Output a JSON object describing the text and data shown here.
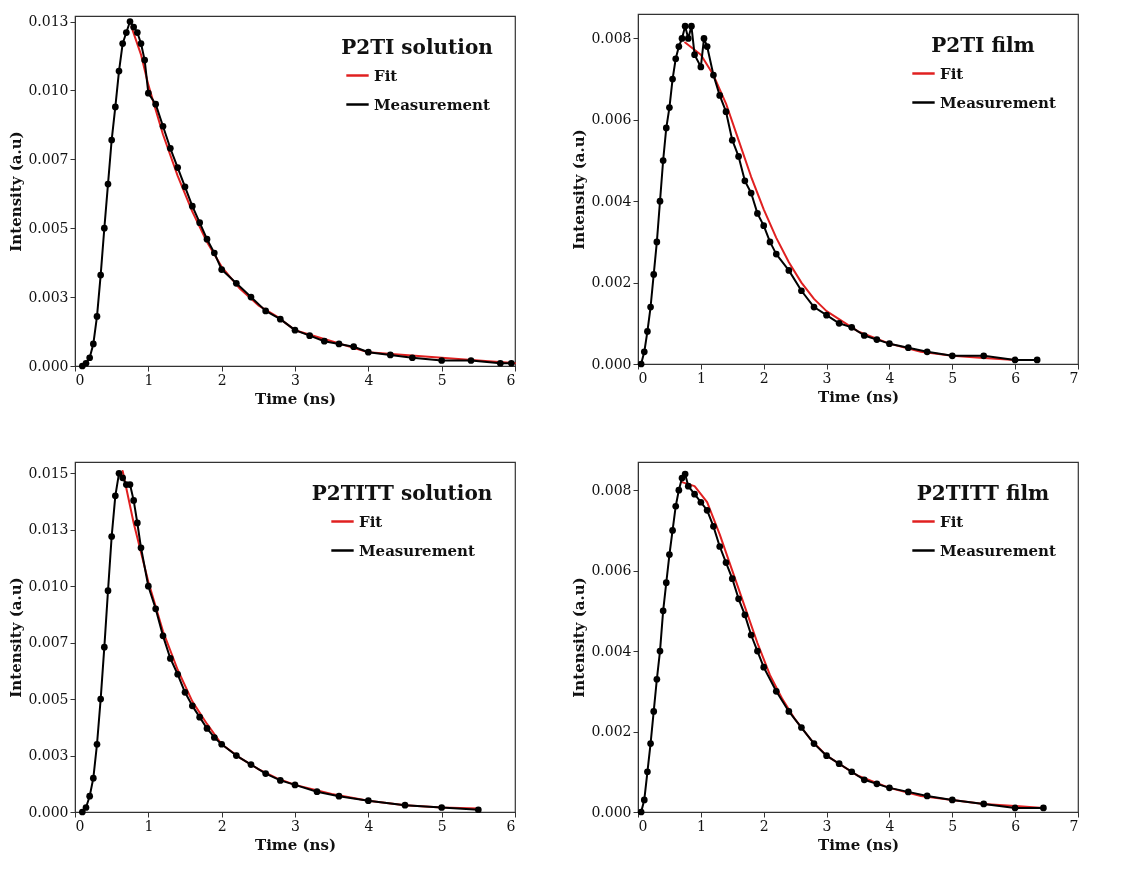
{
  "chart_data": [
    {
      "type": "line",
      "legend_title": "P2TI solution",
      "xlabel": "Time (ns)",
      "ylabel": "Intensity (a.u)",
      "xlim": [
        0,
        6
      ],
      "xticks": [
        0,
        1,
        2,
        3,
        4,
        5,
        6
      ],
      "ylim": [
        0,
        0.0127
      ],
      "yticks": [
        {
          "value": 0,
          "label": "0.000"
        },
        {
          "value": 0.0025,
          "label": "0.003"
        },
        {
          "value": 0.005,
          "label": "0.005"
        },
        {
          "value": 0.0075,
          "label": "0.007"
        },
        {
          "value": 0.01,
          "label": "0.010"
        },
        {
          "value": 0.0125,
          "label": "0.013"
        }
      ],
      "grid": false,
      "legend": "top right",
      "series": [
        {
          "name": "Fit",
          "color": "#e02020",
          "marker": "none",
          "x": [
            0.77,
            0.9,
            1.0,
            1.2,
            1.4,
            1.6,
            1.8,
            2.0,
            2.25,
            2.5,
            2.75,
            3.0,
            3.5,
            4.0,
            4.5,
            5.0,
            5.5,
            6.0
          ],
          "values": [
            0.0123,
            0.0113,
            0.0102,
            0.0084,
            0.0069,
            0.0056,
            0.0045,
            0.0036,
            0.0028,
            0.0022,
            0.0018,
            0.0013,
            0.0009,
            0.0005,
            0.0004,
            0.0003,
            0.0002,
            0.0001
          ]
        },
        {
          "name": "Measurement",
          "color": "#000000",
          "marker": "circle",
          "x": [
            0.1,
            0.15,
            0.2,
            0.25,
            0.3,
            0.35,
            0.4,
            0.45,
            0.5,
            0.55,
            0.6,
            0.65,
            0.7,
            0.75,
            0.8,
            0.85,
            0.9,
            0.95,
            1.0,
            1.1,
            1.2,
            1.3,
            1.4,
            1.5,
            1.6,
            1.7,
            1.8,
            1.9,
            2.0,
            2.2,
            2.4,
            2.6,
            2.8,
            3.0,
            3.2,
            3.4,
            3.6,
            3.8,
            4.0,
            4.3,
            4.6,
            5.0,
            5.4,
            5.8,
            5.95
          ],
          "values": [
            0,
            0.0001,
            0.0003,
            0.0008,
            0.0018,
            0.0033,
            0.005,
            0.0066,
            0.0082,
            0.0094,
            0.0107,
            0.0117,
            0.0121,
            0.0125,
            0.0123,
            0.0121,
            0.0117,
            0.0111,
            0.0099,
            0.0095,
            0.0087,
            0.0079,
            0.0072,
            0.0065,
            0.0058,
            0.0052,
            0.0046,
            0.0041,
            0.0035,
            0.003,
            0.0025,
            0.002,
            0.0017,
            0.0013,
            0.0011,
            0.0009,
            0.0008,
            0.0007,
            0.0005,
            0.0004,
            0.0003,
            0.0002,
            0.0002,
            0.0001,
            0.0001
          ]
        }
      ]
    },
    {
      "type": "line",
      "legend_title": "P2TI film",
      "xlabel": "Time (ns)",
      "ylabel": "Intensity (a.u)",
      "xlim": [
        0,
        7
      ],
      "xticks": [
        0,
        1,
        2,
        3,
        4,
        5,
        6,
        7
      ],
      "ylim": [
        0,
        0.0086
      ],
      "yticks": [
        {
          "value": 0,
          "label": "0.000"
        },
        {
          "value": 0.002,
          "label": "0.002"
        },
        {
          "value": 0.004,
          "label": "0.004"
        },
        {
          "value": 0.006,
          "label": "0.006"
        },
        {
          "value": 0.008,
          "label": "0.008"
        }
      ],
      "grid": false,
      "legend": "top right",
      "series": [
        {
          "name": "Fit",
          "color": "#e02020",
          "marker": "none",
          "x": [
            0.75,
            1.0,
            1.2,
            1.4,
            1.6,
            1.8,
            2.0,
            2.2,
            2.4,
            2.6,
            2.8,
            3.0,
            3.5,
            4.0,
            4.5,
            5.0,
            5.5,
            6.0,
            6.35
          ],
          "values": [
            0.0079,
            0.0076,
            0.0071,
            0.0064,
            0.0055,
            0.0046,
            0.0038,
            0.0031,
            0.0025,
            0.002,
            0.0016,
            0.0013,
            0.0008,
            0.0005,
            0.0003,
            0.0002,
            0.00015,
            0.0001,
            0.0001
          ]
        },
        {
          "name": "Measurement",
          "color": "#000000",
          "marker": "circle",
          "x": [
            0.05,
            0.1,
            0.15,
            0.2,
            0.25,
            0.3,
            0.35,
            0.4,
            0.45,
            0.5,
            0.55,
            0.6,
            0.65,
            0.7,
            0.75,
            0.8,
            0.85,
            0.9,
            1.0,
            1.05,
            1.1,
            1.2,
            1.3,
            1.4,
            1.5,
            1.6,
            1.7,
            1.8,
            1.9,
            2.0,
            2.1,
            2.2,
            2.4,
            2.6,
            2.8,
            3.0,
            3.2,
            3.4,
            3.6,
            3.8,
            4.0,
            4.3,
            4.6,
            5.0,
            5.5,
            6.0,
            6.35
          ],
          "values": [
            0,
            0.0003,
            0.0008,
            0.0014,
            0.0022,
            0.003,
            0.004,
            0.005,
            0.0058,
            0.0063,
            0.007,
            0.0075,
            0.0078,
            0.008,
            0.0083,
            0.008,
            0.0083,
            0.0076,
            0.0073,
            0.008,
            0.0078,
            0.0071,
            0.0066,
            0.0062,
            0.0055,
            0.0051,
            0.0045,
            0.0042,
            0.0037,
            0.0034,
            0.003,
            0.0027,
            0.0023,
            0.0018,
            0.0014,
            0.0012,
            0.001,
            0.0009,
            0.0007,
            0.0006,
            0.0005,
            0.0004,
            0.0003,
            0.0002,
            0.0002,
            0.0001,
            0.0001
          ]
        }
      ]
    },
    {
      "type": "line",
      "legend_title": "P2TITT solution",
      "xlabel": "Time (ns)",
      "ylabel": "Intensity (a.u)",
      "xlim": [
        0,
        6
      ],
      "xticks": [
        0,
        1,
        2,
        3,
        4,
        5,
        6
      ],
      "ylim": [
        0,
        0.0155
      ],
      "yticks": [
        {
          "value": 0,
          "label": "0.000"
        },
        {
          "value": 0.0025,
          "label": "0.003"
        },
        {
          "value": 0.005,
          "label": "0.005"
        },
        {
          "value": 0.0075,
          "label": "0.007"
        },
        {
          "value": 0.01,
          "label": "0.010"
        },
        {
          "value": 0.0125,
          "label": "0.013"
        },
        {
          "value": 0.015,
          "label": "0.015"
        }
      ],
      "grid": false,
      "legend": "top right",
      "series": [
        {
          "name": "Fit",
          "color": "#e02020",
          "marker": "none",
          "x": [
            0.65,
            0.8,
            1.0,
            1.2,
            1.4,
            1.6,
            1.8,
            2.0,
            2.25,
            2.5,
            2.75,
            3.0,
            3.5,
            4.0,
            4.5,
            5.0,
            5.5
          ],
          "values": [
            0.0151,
            0.0128,
            0.0102,
            0.008,
            0.0063,
            0.0049,
            0.0039,
            0.003,
            0.0024,
            0.0019,
            0.0015,
            0.0012,
            0.0008,
            0.0005,
            0.0003,
            0.0002,
            0.00015
          ]
        },
        {
          "name": "Measurement",
          "color": "#000000",
          "marker": "circle",
          "x": [
            0.1,
            0.15,
            0.2,
            0.25,
            0.3,
            0.35,
            0.4,
            0.45,
            0.5,
            0.55,
            0.6,
            0.65,
            0.7,
            0.75,
            0.8,
            0.85,
            0.9,
            1.0,
            1.1,
            1.2,
            1.3,
            1.4,
            1.5,
            1.6,
            1.7,
            1.8,
            1.9,
            2.0,
            2.2,
            2.4,
            2.6,
            2.8,
            3.0,
            3.3,
            3.6,
            4.0,
            4.5,
            5.0,
            5.5
          ],
          "values": [
            0,
            0.0002,
            0.0007,
            0.0015,
            0.003,
            0.005,
            0.0073,
            0.0098,
            0.0122,
            0.014,
            0.015,
            0.0148,
            0.0145,
            0.0145,
            0.0138,
            0.0128,
            0.0117,
            0.01,
            0.009,
            0.0078,
            0.0068,
            0.0061,
            0.0053,
            0.0047,
            0.0042,
            0.0037,
            0.0033,
            0.003,
            0.0025,
            0.0021,
            0.0017,
            0.0014,
            0.0012,
            0.0009,
            0.0007,
            0.0005,
            0.0003,
            0.0002,
            0.0001
          ]
        }
      ]
    },
    {
      "type": "line",
      "legend_title": "P2TITT film",
      "xlabel": "Time (ns)",
      "ylabel": "Intensity (a.u)",
      "xlim": [
        0,
        7
      ],
      "xticks": [
        0,
        1,
        2,
        3,
        4,
        5,
        6,
        7
      ],
      "ylim": [
        0,
        0.0087
      ],
      "yticks": [
        {
          "value": 0,
          "label": "0.000"
        },
        {
          "value": 0.002,
          "label": "0.002"
        },
        {
          "value": 0.004,
          "label": "0.004"
        },
        {
          "value": 0.006,
          "label": "0.006"
        },
        {
          "value": 0.008,
          "label": "0.008"
        }
      ],
      "grid": false,
      "legend": "top right",
      "series": [
        {
          "name": "Fit",
          "color": "#e02020",
          "marker": "none",
          "x": [
            0.7,
            0.9,
            1.1,
            1.3,
            1.5,
            1.7,
            1.9,
            2.1,
            2.3,
            2.5,
            2.75,
            3.0,
            3.5,
            4.0,
            4.5,
            5.0,
            5.5,
            6.0,
            6.45
          ],
          "values": [
            0.0082,
            0.0081,
            0.0077,
            0.0069,
            0.006,
            0.0051,
            0.0042,
            0.0034,
            0.0028,
            0.0023,
            0.0018,
            0.0014,
            0.0009,
            0.0006,
            0.0004,
            0.0003,
            0.0002,
            0.00015,
            0.0001
          ]
        },
        {
          "name": "Measurement",
          "color": "#000000",
          "marker": "circle",
          "x": [
            0.05,
            0.1,
            0.15,
            0.2,
            0.25,
            0.3,
            0.35,
            0.4,
            0.45,
            0.5,
            0.55,
            0.6,
            0.65,
            0.7,
            0.75,
            0.8,
            0.9,
            1.0,
            1.1,
            1.2,
            1.3,
            1.4,
            1.5,
            1.6,
            1.7,
            1.8,
            1.9,
            2.0,
            2.2,
            2.4,
            2.6,
            2.8,
            3.0,
            3.2,
            3.4,
            3.6,
            3.8,
            4.0,
            4.3,
            4.6,
            5.0,
            5.5,
            6.0,
            6.45
          ],
          "values": [
            0,
            0.0003,
            0.001,
            0.0017,
            0.0025,
            0.0033,
            0.004,
            0.005,
            0.0057,
            0.0064,
            0.007,
            0.0076,
            0.008,
            0.0083,
            0.0084,
            0.0081,
            0.0079,
            0.0077,
            0.0075,
            0.0071,
            0.0066,
            0.0062,
            0.0058,
            0.0053,
            0.0049,
            0.0044,
            0.004,
            0.0036,
            0.003,
            0.0025,
            0.0021,
            0.0017,
            0.0014,
            0.0012,
            0.001,
            0.0008,
            0.0007,
            0.0006,
            0.0005,
            0.0004,
            0.0003,
            0.0002,
            0.0001,
            0.0001
          ]
        }
      ]
    }
  ]
}
